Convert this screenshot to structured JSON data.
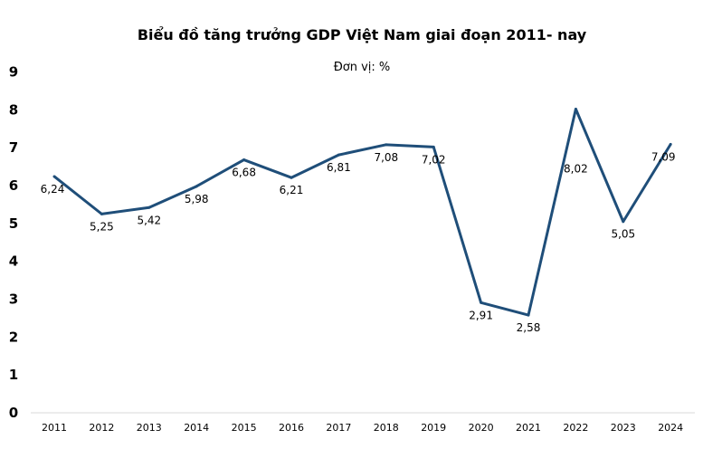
{
  "chart_data": {
    "type": "line",
    "title": "Biểu đồ tăng trưởng GDP Việt Nam giai đoạn 2011- nay",
    "subtitle": "Đơn vị: %",
    "xlabel": "",
    "ylabel": "",
    "categories": [
      "2011",
      "2012",
      "2013",
      "2014",
      "2015",
      "2016",
      "2017",
      "2018",
      "2019",
      "2020",
      "2021",
      "2022",
      "2023",
      "2024"
    ],
    "values": [
      6.24,
      5.25,
      5.42,
      5.98,
      6.68,
      6.21,
      6.81,
      7.08,
      7.02,
      2.91,
      2.58,
      8.02,
      5.05,
      7.09
    ],
    "data_labels": [
      "6,24",
      "5,25",
      "5,42",
      "5,98",
      "6,68",
      "6,21",
      "6,81",
      "7,08",
      "7,02",
      "2,91",
      "2,58",
      "8,02",
      "5,05",
      "7,09"
    ],
    "ylim": [
      0,
      9
    ],
    "yticks": [
      "0",
      "1",
      "2",
      "3",
      "4",
      "5",
      "6",
      "7",
      "8",
      "9"
    ],
    "grid": false,
    "legend": "none",
    "line_color": "#1f4e79"
  }
}
